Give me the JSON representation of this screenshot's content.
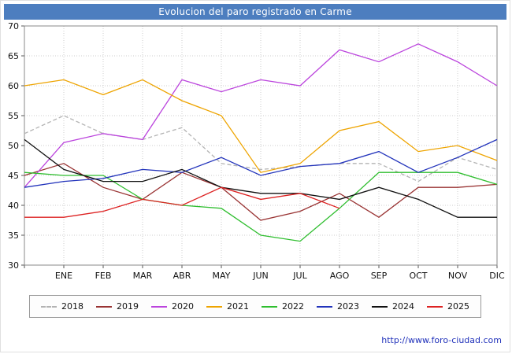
{
  "title": "Evolucion del paro registrado en Carme",
  "footer": {
    "url": "http://www.foro-ciudad.com"
  },
  "colors": {
    "title_bar": "#4d7ebf",
    "grid": "#cccccc",
    "frame": "#888888",
    "link": "#2233bb"
  },
  "chart_data": {
    "type": "line",
    "title": "Evolucion del paro registrado en Carme",
    "categories": [
      "",
      "ENE",
      "FEB",
      "MAR",
      "ABR",
      "MAY",
      "JUN",
      "JUL",
      "AGO",
      "SEP",
      "OCT",
      "NOV",
      "DIC"
    ],
    "xlabel": "",
    "ylabel": "",
    "ylim": [
      30,
      70
    ],
    "ytick_step": 5,
    "grid": true,
    "legend_position": "bottom",
    "series": [
      {
        "name": "2018",
        "color": "#b3b3b3",
        "dash": true,
        "values": [
          52,
          55,
          52,
          51,
          53,
          47,
          46,
          46.5,
          47,
          47,
          44,
          48,
          46
        ]
      },
      {
        "name": "2019",
        "color": "#993333",
        "dash": false,
        "values": [
          45,
          47,
          43,
          41,
          45.5,
          43,
          37.5,
          39,
          42,
          38,
          43,
          43,
          43.5
        ]
      },
      {
        "name": "2020",
        "color": "#bb44dd",
        "dash": false,
        "values": [
          43,
          50.5,
          52,
          51,
          61,
          59,
          61,
          60,
          66,
          64,
          67,
          64,
          60
        ]
      },
      {
        "name": "2021",
        "color": "#eea400",
        "dash": false,
        "values": [
          60,
          61,
          58.5,
          61,
          57.5,
          55,
          45.5,
          47,
          52.5,
          54,
          49,
          50,
          47.5
        ]
      },
      {
        "name": "2022",
        "color": "#2fbe2f",
        "dash": false,
        "values": [
          45.5,
          45,
          45,
          41,
          40,
          39.5,
          35,
          34,
          39.5,
          45.5,
          45.5,
          45.5,
          43.5
        ]
      },
      {
        "name": "2023",
        "color": "#2233bb",
        "dash": false,
        "values": [
          43,
          44,
          44.5,
          46,
          45.5,
          48,
          45,
          46.5,
          47,
          49,
          45.5,
          48,
          51
        ]
      },
      {
        "name": "2024",
        "color": "#111111",
        "dash": false,
        "values": [
          51,
          46,
          44,
          44,
          46,
          43,
          42,
          42,
          41,
          43,
          41,
          38,
          38
        ]
      },
      {
        "name": "2025",
        "color": "#dd2222",
        "dash": false,
        "values": [
          38,
          38,
          39,
          41,
          40,
          43,
          41,
          42,
          39.5,
          null,
          null,
          null,
          null
        ]
      }
    ]
  }
}
